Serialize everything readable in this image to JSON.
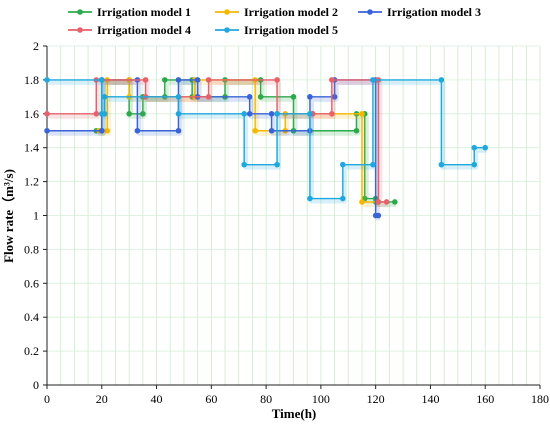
{
  "chart_data": {
    "type": "line",
    "xlabel": "Time(h)",
    "ylabel": "Flow rate（m³/s)",
    "xlim": [
      0,
      180
    ],
    "ylim": [
      0,
      2
    ],
    "x_ticks": [
      "0",
      "20",
      "40",
      "60",
      "80",
      "100",
      "120",
      "140",
      "160",
      "180"
    ],
    "y_ticks": [
      "0",
      "0.2",
      "0.4",
      "0.6",
      "0.8",
      "1",
      "1.2",
      "1.4",
      "1.6",
      "1.8",
      "2"
    ],
    "grid": true,
    "legend": "top",
    "series": [
      {
        "name": "Irrigation model 1",
        "color": "#2ca94a",
        "points": [
          [
            18,
            1.5
          ],
          [
            20,
            1.5
          ],
          [
            20,
            1.8
          ],
          [
            30,
            1.8
          ],
          [
            30,
            1.6
          ],
          [
            35,
            1.6
          ],
          [
            35,
            1.7
          ],
          [
            43,
            1.7
          ],
          [
            43,
            1.8
          ],
          [
            53,
            1.8
          ],
          [
            53,
            1.7
          ],
          [
            65,
            1.7
          ],
          [
            65,
            1.8
          ],
          [
            78,
            1.8
          ],
          [
            78,
            1.7
          ],
          [
            90,
            1.7
          ],
          [
            90,
            1.5
          ],
          [
            113,
            1.5
          ],
          [
            113,
            1.6
          ],
          [
            116,
            1.6
          ],
          [
            116,
            1.1
          ],
          [
            120,
            1.1
          ],
          [
            120,
            1.08
          ],
          [
            127,
            1.08
          ]
        ]
      },
      {
        "name": "Irrigation model 2",
        "color": "#f5b800",
        "points": [
          [
            19,
            1.5
          ],
          [
            22,
            1.5
          ],
          [
            22,
            1.8
          ],
          [
            30,
            1.8
          ],
          [
            30,
            1.7
          ],
          [
            54,
            1.7
          ],
          [
            54,
            1.8
          ],
          [
            76,
            1.8
          ],
          [
            76,
            1.5
          ],
          [
            87,
            1.5
          ],
          [
            87,
            1.6
          ],
          [
            115,
            1.6
          ],
          [
            115,
            1.08
          ],
          [
            121,
            1.08
          ]
        ]
      },
      {
        "name": "Irrigation model 3",
        "color": "#3a63d8",
        "points": [
          [
            0,
            1.5
          ],
          [
            20,
            1.5
          ],
          [
            20,
            1.8
          ],
          [
            33,
            1.8
          ],
          [
            33,
            1.5
          ],
          [
            48,
            1.5
          ],
          [
            48,
            1.8
          ],
          [
            55,
            1.8
          ],
          [
            55,
            1.7
          ],
          [
            74,
            1.7
          ],
          [
            74,
            1.6
          ],
          [
            82,
            1.6
          ],
          [
            82,
            1.5
          ],
          [
            96,
            1.5
          ],
          [
            96,
            1.7
          ],
          [
            105,
            1.7
          ],
          [
            105,
            1.8
          ],
          [
            120,
            1.8
          ],
          [
            120,
            1.0
          ],
          [
            121,
            1.0
          ]
        ]
      },
      {
        "name": "Irrigation model 4",
        "color": "#e8606a",
        "points": [
          [
            0,
            1.6
          ],
          [
            18,
            1.6
          ],
          [
            18,
            1.8
          ],
          [
            36,
            1.8
          ],
          [
            36,
            1.7
          ],
          [
            59,
            1.7
          ],
          [
            59,
            1.8
          ],
          [
            84,
            1.8
          ],
          [
            84,
            1.6
          ],
          [
            97,
            1.6
          ],
          [
            97,
            1.6
          ],
          [
            104,
            1.6
          ],
          [
            104,
            1.8
          ],
          [
            121,
            1.8
          ],
          [
            121,
            1.08
          ],
          [
            124,
            1.08
          ]
        ]
      },
      {
        "name": "Irrigation model 5",
        "color": "#1fa8de",
        "points": [
          [
            0,
            1.8
          ],
          [
            20,
            1.8
          ],
          [
            20,
            1.6
          ],
          [
            21,
            1.6
          ],
          [
            21,
            1.7
          ],
          [
            48,
            1.7
          ],
          [
            48,
            1.6
          ],
          [
            72,
            1.6
          ],
          [
            72,
            1.3
          ],
          [
            84,
            1.3
          ],
          [
            84,
            1.6
          ],
          [
            96,
            1.6
          ],
          [
            96,
            1.1
          ],
          [
            108,
            1.1
          ],
          [
            108,
            1.3
          ],
          [
            119,
            1.3
          ],
          [
            119,
            1.8
          ],
          [
            144,
            1.8
          ],
          [
            144,
            1.3
          ],
          [
            156,
            1.3
          ],
          [
            156,
            1.4
          ],
          [
            160,
            1.4
          ]
        ]
      }
    ]
  }
}
